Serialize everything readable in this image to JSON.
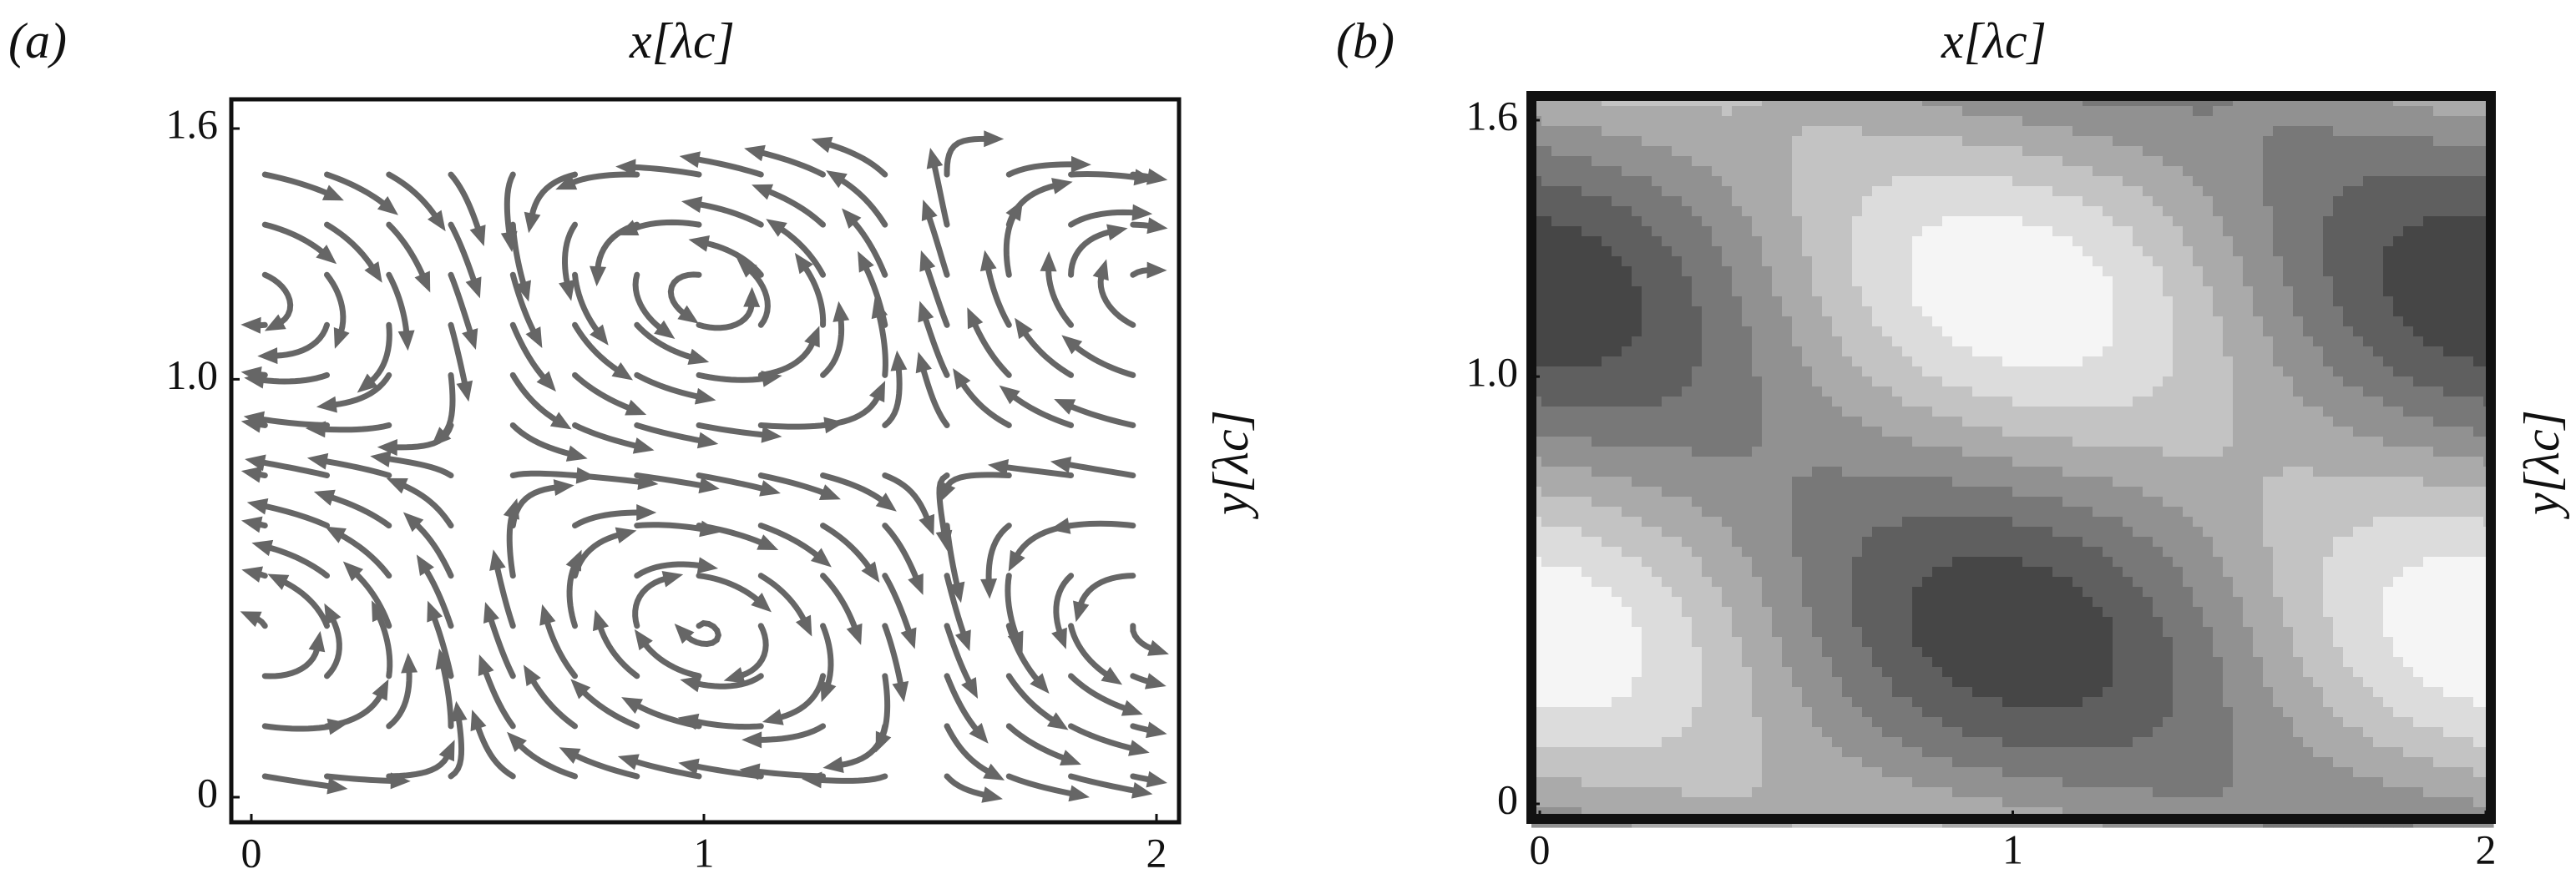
{
  "panels": [
    {
      "tag": "(a)",
      "xlabel": "x[λc]",
      "ylabel": "y[λc]",
      "xlim": [
        0,
        2
      ],
      "ylim": [
        0,
        1.6
      ],
      "xticks": [
        0,
        1,
        2
      ],
      "yticks": [
        0,
        {
          "value": 1,
          "label": "1.0"
        },
        1.6
      ]
    },
    {
      "tag": "(b)",
      "xlabel": "x[λc]",
      "ylabel": "y[λc]",
      "xlim": [
        0,
        2
      ],
      "ylim": [
        0,
        1.6
      ],
      "xticks": [
        0,
        1,
        2
      ],
      "yticks": [
        0,
        {
          "value": 1,
          "label": "1.0"
        },
        1.6
      ]
    }
  ]
}
